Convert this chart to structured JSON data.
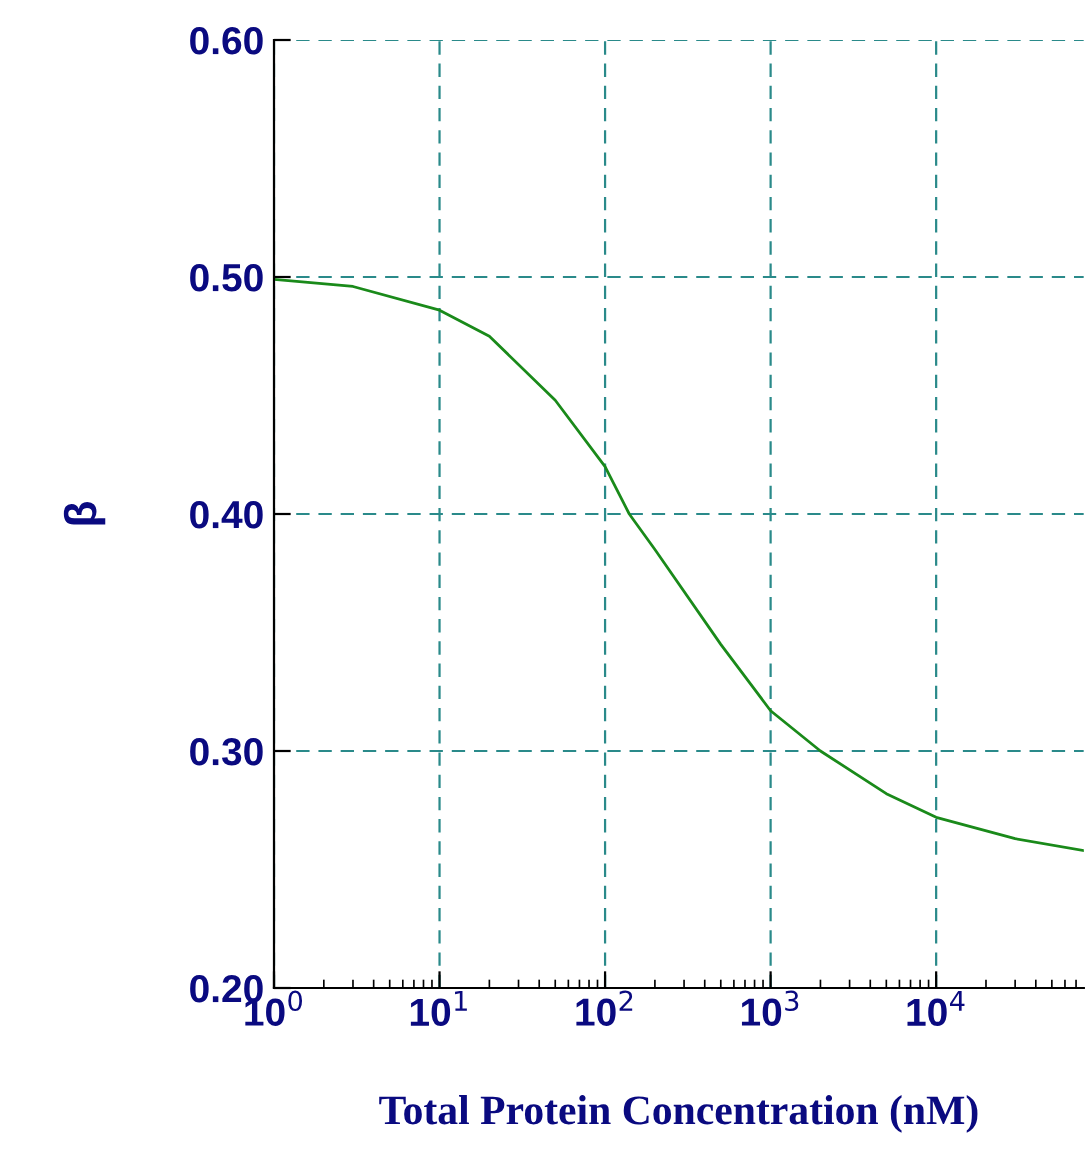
{
  "chart_data": {
    "type": "line",
    "xlabel": "Total Protein Concentration (nM)",
    "ylabel": "β",
    "log": "x",
    "x": [
      1,
      3,
      10,
      20,
      50,
      100,
      140,
      200,
      500,
      1000,
      2000,
      5000,
      10000,
      30000,
      78000
    ],
    "series": [
      {
        "color": "#1a8a1a",
        "values": [
          0.499,
          0.496,
          0.486,
          0.475,
          0.448,
          0.42,
          0.4,
          0.385,
          0.345,
          0.317,
          0.3,
          0.282,
          0.272,
          0.263,
          0.258
        ]
      }
    ],
    "xlim": [
      1,
      78000
    ],
    "xticks": [
      {
        "value": 1,
        "label": "10$^{0}$"
      },
      {
        "value": 10,
        "label": "10$^{1}$"
      },
      {
        "value": 100,
        "label": "10$^{2}$"
      },
      {
        "value": 1000,
        "label": "10$^{3}$"
      },
      {
        "value": 10000,
        "label": "10$^{4}$"
      }
    ],
    "ylim": [
      0.2,
      0.6
    ],
    "yticks": [
      {
        "value": 0.2,
        "label": "0.20"
      },
      {
        "value": 0.3,
        "label": "0.30"
      },
      {
        "value": 0.4,
        "label": "0.40"
      },
      {
        "value": 0.5,
        "label": "0.50"
      },
      {
        "value": 0.6,
        "label": "0.60"
      }
    ],
    "grid": true,
    "line_style": "solid",
    "marker": "none"
  }
}
